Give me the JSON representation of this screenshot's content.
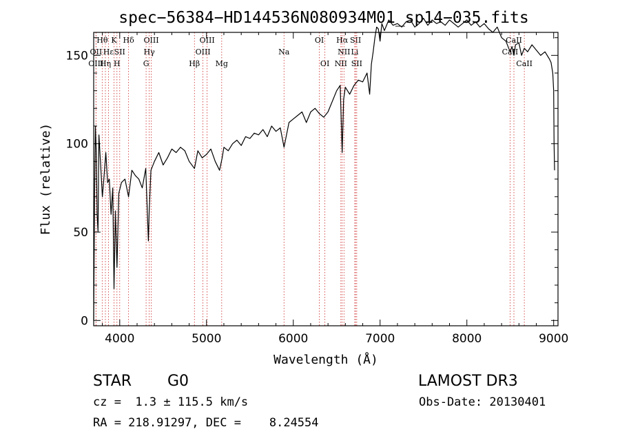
{
  "chart_data": {
    "type": "line",
    "title": "spec−56384−HD144536N080934M01_sp14−035.fits",
    "xlabel": "Wavelength (Å)",
    "ylabel": "Flux (relative)",
    "xlim": [
      3700,
      9050
    ],
    "ylim": [
      -3,
      163
    ],
    "x_ticks": [
      4000,
      5000,
      6000,
      7000,
      8000,
      9000
    ],
    "x_tick_labels": [
      "4000",
      "5000",
      "6000",
      "7000",
      "8000",
      "9000"
    ],
    "y_ticks": [
      0,
      50,
      100,
      150
    ],
    "y_tick_labels": [
      "0",
      "50",
      "100",
      "150"
    ],
    "grid": false,
    "series": [
      {
        "name": "flux",
        "x": [
          3700,
          3710,
          3720,
          3730,
          3740,
          3750,
          3760,
          3780,
          3800,
          3820,
          3840,
          3860,
          3880,
          3900,
          3920,
          3934,
          3950,
          3968,
          3990,
          4020,
          4060,
          4102,
          4140,
          4180,
          4220,
          4260,
          4300,
          4330,
          4340,
          4360,
          4400,
          4450,
          4500,
          4550,
          4600,
          4650,
          4700,
          4750,
          4800,
          4861,
          4900,
          4950,
          5000,
          5050,
          5100,
          5150,
          5180,
          5200,
          5250,
          5300,
          5350,
          5400,
          5450,
          5500,
          5550,
          5600,
          5650,
          5700,
          5750,
          5800,
          5850,
          5893,
          5950,
          6000,
          6050,
          6100,
          6150,
          6200,
          6250,
          6300,
          6350,
          6400,
          6450,
          6500,
          6540,
          6563,
          6580,
          6600,
          6650,
          6700,
          6750,
          6800,
          6850,
          6880,
          6900,
          6920,
          6940,
          6960,
          6980,
          7000,
          7020,
          7050,
          7100,
          7150,
          7200,
          7250,
          7300,
          7350,
          7400,
          7450,
          7500,
          7550,
          7600,
          7650,
          7700,
          7750,
          7800,
          7850,
          7900,
          7950,
          8000,
          8050,
          8100,
          8150,
          8200,
          8250,
          8300,
          8350,
          8400,
          8450,
          8498,
          8520,
          8542,
          8560,
          8600,
          8630,
          8662,
          8700,
          8750,
          8800,
          8850,
          8900,
          8950,
          8970,
          8990,
          9000,
          9005,
          9010
        ],
        "y": [
          0,
          70,
          110,
          95,
          60,
          50,
          105,
          88,
          70,
          82,
          95,
          78,
          80,
          60,
          75,
          18,
          62,
          30,
          72,
          78,
          80,
          70,
          85,
          82,
          80,
          75,
          86,
          45,
          62,
          85,
          90,
          95,
          88,
          92,
          97,
          95,
          98,
          96,
          90,
          86,
          96,
          92,
          94,
          97,
          90,
          85,
          92,
          98,
          96,
          100,
          102,
          99,
          104,
          103,
          106,
          105,
          108,
          104,
          110,
          107,
          109,
          98,
          112,
          114,
          116,
          118,
          112,
          118,
          120,
          117,
          115,
          118,
          124,
          130,
          133,
          95,
          125,
          132,
          128,
          133,
          136,
          135,
          140,
          128,
          145,
          152,
          160,
          166,
          165,
          158,
          168,
          164,
          170,
          167,
          168,
          166,
          169,
          170,
          166,
          168,
          171,
          167,
          170,
          168,
          169,
          167,
          170,
          168,
          166,
          168,
          170,
          167,
          169,
          166,
          168,
          165,
          163,
          166,
          160,
          158,
          152,
          155,
          150,
          156,
          157,
          150,
          154,
          152,
          156,
          153,
          150,
          152,
          148,
          146,
          140,
          130,
          100,
          85
        ]
      }
    ],
    "line_markers": [
      {
        "label": "Hθ",
        "x": 3798,
        "row": 1
      },
      {
        "label": "OII",
        "x": 3727,
        "row": 2
      },
      {
        "label": "OIII",
        "x": 3726,
        "row": 3
      },
      {
        "label": "Hε",
        "x": 3870,
        "row": 2
      },
      {
        "label": "Hη",
        "x": 3835,
        "row": 3
      },
      {
        "label": "K",
        "x": 3934,
        "row": 1
      },
      {
        "label": "SII",
        "x": 4000,
        "row": 2
      },
      {
        "label": "H",
        "x": 3968,
        "row": 3
      },
      {
        "label": "Hδ",
        "x": 4102,
        "row": 1
      },
      {
        "label": "OIII",
        "x": 4363,
        "row": 1
      },
      {
        "label": "Hγ",
        "x": 4340,
        "row": 2
      },
      {
        "label": "G",
        "x": 4304,
        "row": 3
      },
      {
        "label": "Hβ",
        "x": 4861,
        "row": 3
      },
      {
        "label": "OIII",
        "x": 5007,
        "row": 1
      },
      {
        "label": "OIII",
        "x": 4959,
        "row": 2
      },
      {
        "label": "Mg",
        "x": 5175,
        "row": 3
      },
      {
        "label": "Na",
        "x": 5893,
        "row": 2
      },
      {
        "label": "OI",
        "x": 6300,
        "row": 1
      },
      {
        "label": "OI",
        "x": 6364,
        "row": 3
      },
      {
        "label": "Hα",
        "x": 6563,
        "row": 1
      },
      {
        "label": "SII",
        "x": 6717,
        "row": 1
      },
      {
        "label": "NII",
        "x": 6584,
        "row": 2
      },
      {
        "label": "Li",
        "x": 6708,
        "row": 2
      },
      {
        "label": "NII",
        "x": 6548,
        "row": 3
      },
      {
        "label": "SII",
        "x": 6731,
        "row": 3
      },
      {
        "label": "CaII",
        "x": 8542,
        "row": 1
      },
      {
        "label": "CaII",
        "x": 8498,
        "row": 2
      },
      {
        "label": "CaII",
        "x": 8662,
        "row": 3
      }
    ]
  },
  "info": {
    "object_class": "STAR",
    "subclass": "G0",
    "survey": "LAMOST DR3",
    "redshift": "cz =  1.3 ± 115.5 km/s",
    "obs_date": "Obs-Date: 20130401",
    "coordinates": "RA = 218.91297, DEC =    8.24554"
  },
  "colors": {
    "spectrum": "#000000",
    "line_marker": "#cc2222"
  }
}
